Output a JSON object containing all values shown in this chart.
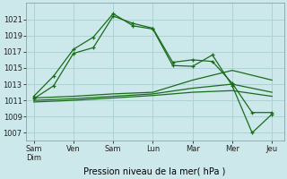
{
  "xlabel": "Pression niveau de la mer( hPa )",
  "bg_color": "#cce8ea",
  "grid_color": "#aacfd2",
  "line_color": "#1a6b1a",
  "ylim": [
    1006.0,
    1023.0
  ],
  "yticks": [
    1007,
    1009,
    1011,
    1013,
    1015,
    1017,
    1019,
    1021
  ],
  "x_labels": [
    "Sam\nDim",
    "Ven",
    "Sam",
    "Lun",
    "Mar",
    "Mer",
    "Jeu"
  ],
  "x_positions": [
    0,
    1,
    2,
    3,
    4,
    5,
    6
  ],
  "series": [
    {
      "x": [
        0,
        0.5,
        1,
        1.5,
        2,
        2.5,
        3,
        3.5,
        4,
        4.5,
        5,
        5.5,
        6
      ],
      "y": [
        1011.5,
        1014.0,
        1017.3,
        1018.8,
        1021.7,
        1020.2,
        1019.8,
        1015.3,
        1015.2,
        1016.6,
        1012.8,
        1007.0,
        1009.3
      ]
    },
    {
      "x": [
        0,
        0.5,
        1,
        1.5,
        2,
        2.5,
        3,
        3.5,
        4,
        4.5,
        5,
        5.5,
        6
      ],
      "y": [
        1011.2,
        1012.8,
        1016.8,
        1017.5,
        1021.4,
        1020.5,
        1019.9,
        1015.7,
        1016.0,
        1015.8,
        1013.1,
        1009.5,
        1009.5
      ]
    },
    {
      "x": [
        0,
        1,
        2,
        3,
        4,
        5,
        6
      ],
      "y": [
        1011.3,
        1011.5,
        1011.8,
        1012.0,
        1013.5,
        1014.7,
        1013.5
      ]
    },
    {
      "x": [
        0,
        1,
        2,
        3,
        4,
        5,
        6
      ],
      "y": [
        1011.0,
        1011.2,
        1011.5,
        1011.8,
        1012.5,
        1013.0,
        1012.0
      ]
    },
    {
      "x": [
        0,
        1,
        2,
        3,
        4,
        5,
        6
      ],
      "y": [
        1010.8,
        1011.0,
        1011.3,
        1011.6,
        1012.0,
        1012.2,
        1011.5
      ]
    }
  ],
  "marker": "+",
  "marker_series": [
    0,
    1
  ]
}
